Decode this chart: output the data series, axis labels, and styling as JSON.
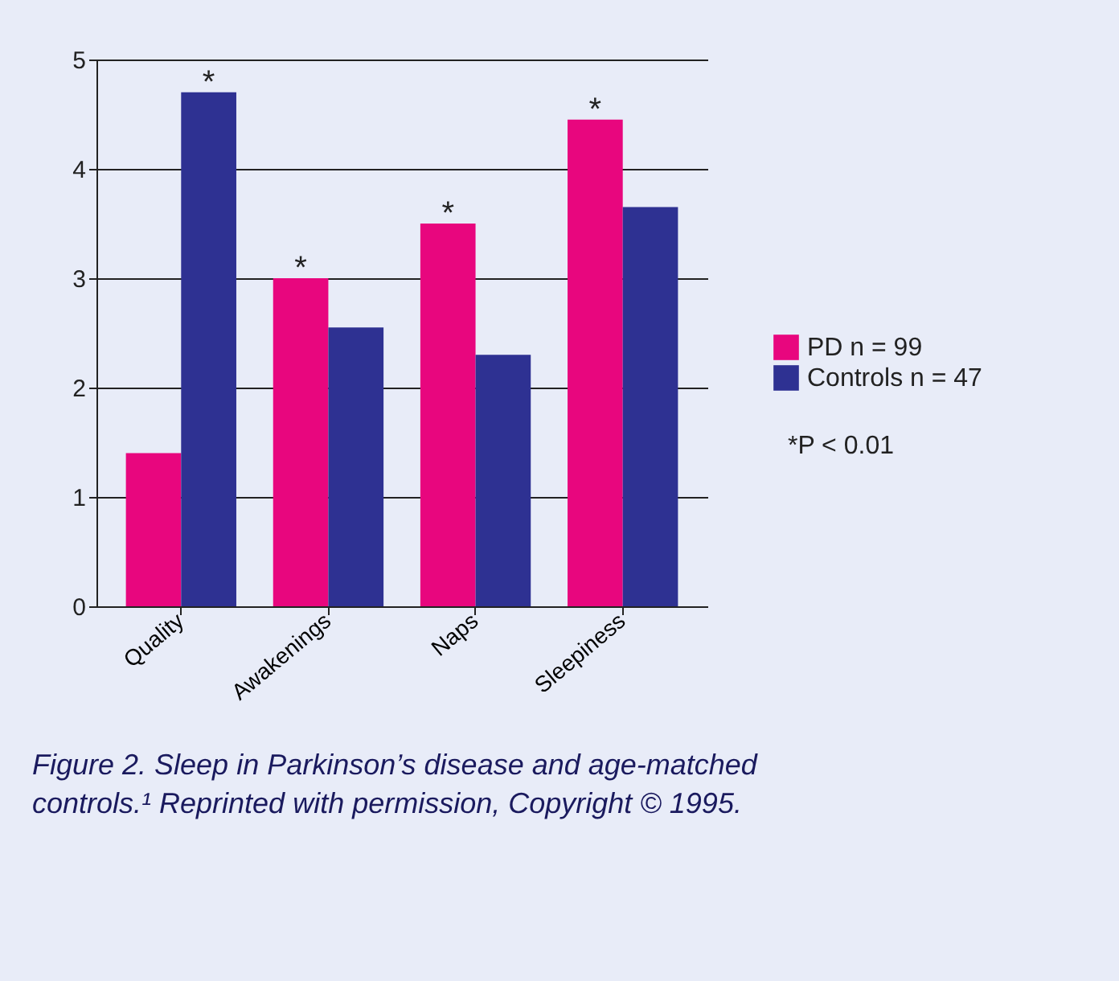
{
  "chart_data": {
    "type": "bar",
    "categories": [
      "Quality",
      "Awakenings",
      "Naps",
      "Sleepiness"
    ],
    "series": [
      {
        "name": "PD n = 99",
        "color": "#e8067e",
        "values": [
          1.4,
          3.0,
          3.5,
          4.45
        ]
      },
      {
        "name": "Controls n = 47",
        "color": "#2e3192",
        "values": [
          4.7,
          2.55,
          2.3,
          3.65
        ]
      }
    ],
    "ylim": [
      0,
      5
    ],
    "yticks": [
      0,
      1,
      2,
      3,
      4,
      5
    ],
    "grid": "y",
    "legend": "right",
    "annotations": [
      {
        "text": "*",
        "x": "Quality",
        "y": 4.7
      },
      {
        "text": "*",
        "x": "Awakenings",
        "y": 3.0
      },
      {
        "text": "*",
        "x": "Naps",
        "y": 3.5
      },
      {
        "text": "*",
        "x": "Sleepiness",
        "y": 4.45
      },
      "*P < 0.01",
      "Figure 2. Sleep in Parkinson’s disease and age-matched controls.¹ Reprinted with permission, Copyright © 1995."
    ]
  }
}
